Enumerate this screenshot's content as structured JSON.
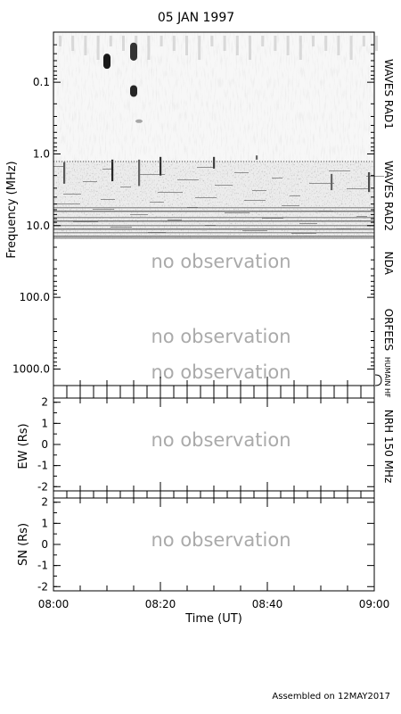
{
  "title": "05 JAN 1997",
  "footer": "Assembled on 12MAY2017",
  "no_observation": "no observation",
  "colors": {
    "no_observation_text": "#aaaaaa",
    "axes": "#000000",
    "burst": "#000000"
  },
  "chart_data": [
    {
      "type": "heatmap",
      "name": "dynamic-spectrum",
      "ylabel": "Frequency (MHz)",
      "yscale": "log",
      "yinverted": true,
      "ylim": [
        0.02,
        1700
      ],
      "yticks": [
        0.1,
        1.0,
        10.0,
        100.0,
        1000.0
      ],
      "ytick_labels": [
        "0.1",
        "1.0",
        "10.0",
        "100.0",
        "1000.0"
      ],
      "xlim": [
        "08:00",
        "09:00"
      ],
      "bands": [
        {
          "label": "WAVES RAD1",
          "range_mhz": [
            0.02,
            1.07
          ],
          "observed": true
        },
        {
          "label": "WAVES RAD2",
          "range_mhz": [
            1.07,
            13.8
          ],
          "observed": true
        },
        {
          "label": "NDA",
          "range_mhz": [
            13.8,
            80
          ],
          "observed": false
        },
        {
          "label": "ORFEES",
          "range_mhz": [
            80,
            1000
          ],
          "observed": false
        },
        {
          "label": "HUMAIN HF",
          "range_mhz": [
            1000,
            1700
          ],
          "observed": false
        }
      ],
      "bursts": [
        {
          "time": "08:10",
          "freq_start": 0.04,
          "freq_end": 0.065,
          "intensity": 0.9
        },
        {
          "time": "08:15",
          "freq_start": 0.028,
          "freq_end": 0.05,
          "intensity": 0.8
        },
        {
          "time": "08:15",
          "freq_start": 0.11,
          "freq_end": 0.16,
          "intensity": 0.85
        },
        {
          "time": "08:16",
          "freq_start": 0.33,
          "freq_end": 0.37,
          "intensity": 0.35
        },
        {
          "time": "08:02",
          "freq_start": 1.3,
          "freq_end": 2.6,
          "intensity": 0.65
        },
        {
          "time": "08:11",
          "freq_start": 1.2,
          "freq_end": 2.4,
          "intensity": 0.85
        },
        {
          "time": "08:16",
          "freq_start": 1.2,
          "freq_end": 2.8,
          "intensity": 0.6
        },
        {
          "time": "08:20",
          "freq_start": 1.1,
          "freq_end": 2.0,
          "intensity": 0.8
        },
        {
          "time": "08:30",
          "freq_start": 1.1,
          "freq_end": 1.6,
          "intensity": 0.75
        },
        {
          "time": "08:38",
          "freq_start": 1.05,
          "freq_end": 1.2,
          "intensity": 0.6
        },
        {
          "time": "08:52",
          "freq_start": 1.9,
          "freq_end": 3.2,
          "intensity": 0.6
        },
        {
          "time": "08:59",
          "freq_start": 1.8,
          "freq_end": 3.4,
          "intensity": 0.7
        }
      ]
    },
    {
      "type": "heatmap",
      "name": "nrh-ew",
      "ylabel": "EW (Rs)",
      "ylim": [
        -2.2,
        2.2
      ],
      "yticks": [
        2,
        1,
        0,
        -1,
        -2
      ],
      "ytick_labels": [
        "2",
        "1",
        "0",
        "-1",
        "-2"
      ],
      "observed": false
    },
    {
      "type": "heatmap",
      "name": "nrh-sn",
      "ylabel": "SN (Rs)",
      "ylim": [
        -2.2,
        2.2
      ],
      "yticks": [
        2,
        1,
        0,
        -1,
        -2
      ],
      "ytick_labels": [
        "2",
        "1",
        "0",
        "-1",
        "-2"
      ],
      "observed": false
    }
  ],
  "nrh_label": "NRH 150 MHz",
  "xaxis": {
    "label": "Time (UT)",
    "ticks": [
      "08:00",
      "08:20",
      "08:40",
      "09:00"
    ]
  }
}
